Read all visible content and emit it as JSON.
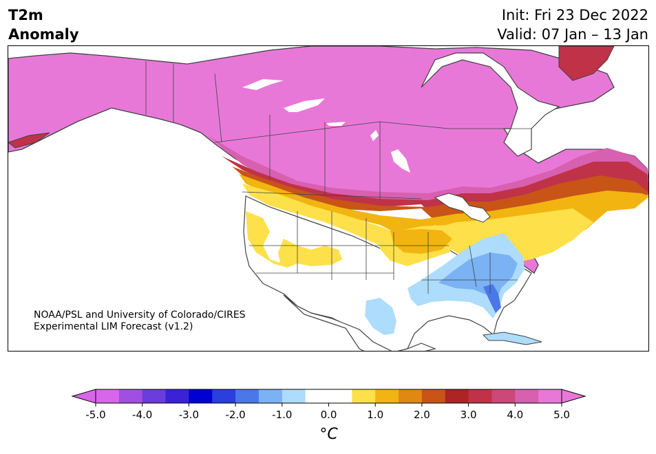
{
  "header": {
    "title_line1": "T2m",
    "title_line2": "Anomaly",
    "init": "Init: Fri 23 Dec 2022",
    "valid": "Valid: 07 Jan – 13 Jan"
  },
  "credit": {
    "line1": "NOAA/PSL and University of Colorado/CIRES",
    "line2": "Experimental LIM Forecast (v1.2)"
  },
  "colorbar": {
    "unit": "°C",
    "tick_labels": [
      "-5.0",
      "-4.0",
      "-3.0",
      "-2.0",
      "-1.0",
      "0.0",
      "1.0",
      "2.0",
      "3.0",
      "4.0",
      "5.0"
    ],
    "colors": [
      "#d966ea",
      "#a050e0",
      "#6a3ddc",
      "#3a22d6",
      "#0000d0",
      "#2a3fdc",
      "#4a78e8",
      "#7ab2f4",
      "#aedcfc",
      "#ffffff",
      "#ffffff",
      "#fde04a",
      "#f2b410",
      "#e08814",
      "#c85418",
      "#ac2424",
      "#c03248",
      "#cc4878",
      "#d860b0",
      "#e878d8"
    ],
    "extend_low_color": "#d966ea",
    "extend_high_color": "#e878d8"
  },
  "map_colors": {
    "cold_light": "#aedcfc",
    "cold_mid": "#7ab2f4",
    "cold_deep": "#4a78e8",
    "warm_1": "#fde04a",
    "warm_2": "#f2b410",
    "warm_3": "#e08814",
    "warm_4": "#c85418",
    "warm_5": "#ac2424",
    "warm_6": "#c03248",
    "warm_7": "#cc4878",
    "warm_8": "#d860b0",
    "warm_max": "#e878d8",
    "coast": "#404040"
  }
}
